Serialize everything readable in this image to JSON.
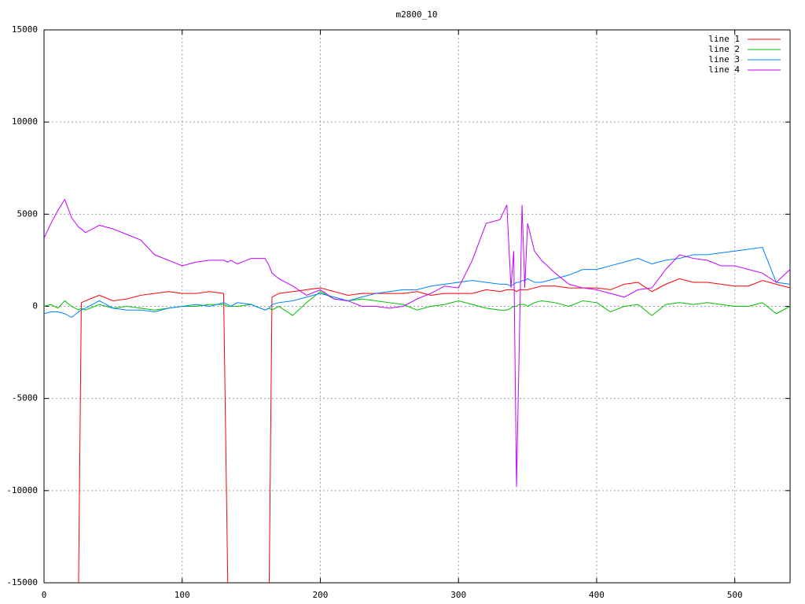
{
  "chart_data": {
    "type": "line",
    "title": "m2800_10",
    "x": [
      0,
      5,
      10,
      15,
      20,
      25,
      27,
      30,
      40,
      50,
      60,
      70,
      80,
      90,
      100,
      110,
      120,
      130,
      133,
      135,
      140,
      150,
      160,
      163,
      165,
      170,
      180,
      190,
      200,
      210,
      220,
      230,
      240,
      250,
      260,
      270,
      280,
      290,
      300,
      310,
      320,
      330,
      335,
      338,
      340,
      342,
      344,
      346,
      348,
      350,
      355,
      360,
      370,
      380,
      390,
      400,
      410,
      420,
      430,
      440,
      450,
      460,
      470,
      480,
      490,
      500,
      510,
      520,
      530,
      540
    ],
    "series": [
      {
        "name": "line 1",
        "color": "#ff0000",
        "values": [
          null,
          null,
          null,
          null,
          null,
          -15000,
          200,
          300,
          600,
          300,
          400,
          600,
          700,
          800,
          700,
          700,
          800,
          700,
          -15000,
          null,
          null,
          null,
          null,
          -15000,
          500,
          700,
          800,
          900,
          1000,
          800,
          600,
          700,
          700,
          700,
          700,
          800,
          600,
          700,
          700,
          700,
          900,
          800,
          900,
          900,
          900,
          800,
          900,
          900,
          900,
          900,
          1000,
          1100,
          1100,
          1000,
          1000,
          1000,
          900,
          1200,
          1300,
          800,
          1200,
          1500,
          1300,
          1300,
          1200,
          1100,
          1100,
          1400,
          1200,
          1000
        ]
      },
      {
        "name": "line 2",
        "color": "#00c000",
        "values": [
          0,
          100,
          -100,
          300,
          0,
          -200,
          -100,
          -200,
          100,
          -100,
          0,
          -100,
          -200,
          -100,
          0,
          0,
          100,
          100,
          0,
          0,
          0,
          100,
          -200,
          -100,
          -200,
          0,
          -500,
          200,
          800,
          400,
          300,
          400,
          300,
          200,
          100,
          -200,
          0,
          100,
          300,
          100,
          -100,
          -200,
          -200,
          -100,
          0,
          0,
          100,
          100,
          100,
          0,
          200,
          300,
          200,
          0,
          300,
          200,
          -300,
          0,
          100,
          -500,
          100,
          200,
          100,
          200,
          100,
          0,
          0,
          200,
          -400,
          0
        ]
      },
      {
        "name": "line 3",
        "color": "#0080ff",
        "values": [
          -400,
          -300,
          -300,
          -400,
          -600,
          -300,
          -200,
          -100,
          300,
          -100,
          -200,
          -200,
          -300,
          -100,
          0,
          100,
          0,
          200,
          100,
          0,
          200,
          100,
          -200,
          -100,
          100,
          200,
          300,
          500,
          700,
          500,
          300,
          500,
          700,
          800,
          900,
          900,
          1100,
          1200,
          1300,
          1400,
          1300,
          1200,
          1200,
          1100,
          1200,
          1300,
          1300,
          1400,
          1400,
          1500,
          1300,
          1300,
          1500,
          1700,
          2000,
          2000,
          2200,
          2400,
          2600,
          2300,
          2500,
          2600,
          2800,
          2800,
          2900,
          3000,
          3100,
          3200,
          1300,
          1200
        ]
      },
      {
        "name": "line 4",
        "color": "#c000ff",
        "values": [
          3700,
          4500,
          5200,
          5800,
          4800,
          4300,
          4200,
          4000,
          4400,
          4200,
          3900,
          3600,
          2800,
          2500,
          2200,
          2400,
          2500,
          2500,
          2400,
          2500,
          2300,
          2600,
          2600,
          2200,
          1800,
          1500,
          1100,
          600,
          900,
          400,
          300,
          0,
          0,
          -100,
          0,
          400,
          700,
          1100,
          1000,
          2500,
          4500,
          4700,
          5500,
          1000,
          3000,
          -9800,
          -2000,
          5500,
          1000,
          4500,
          3000,
          2500,
          1800,
          1200,
          1000,
          900,
          700,
          500,
          900,
          1000,
          2000,
          2800,
          2600,
          2500,
          2200,
          2200,
          2000,
          1800,
          1300,
          2000
        ]
      }
    ],
    "xlim": [
      0,
      540
    ],
    "ylim": [
      -15000,
      15000
    ],
    "xticks": [
      0,
      100,
      200,
      300,
      400,
      500
    ],
    "yticks": [
      -15000,
      -10000,
      -5000,
      0,
      5000,
      10000,
      15000
    ],
    "grid": true,
    "legend": "top-right"
  }
}
